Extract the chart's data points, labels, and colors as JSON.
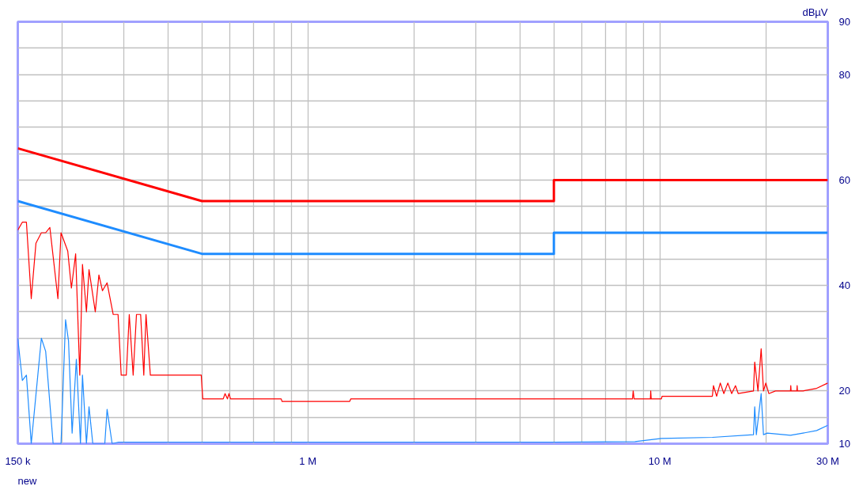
{
  "chart_data": {
    "type": "line",
    "ylabel": "dBµV",
    "annotations": [
      "new"
    ],
    "log": "x",
    "grid": true,
    "marker": "none",
    "line_style": "solid",
    "xlim": [
      150000,
      30000000
    ],
    "ylim": [
      10,
      90
    ],
    "xticks": [
      {
        "value": 150000,
        "label": "150 k"
      },
      {
        "value": 200000,
        "label": null
      },
      {
        "value": 300000,
        "label": null
      },
      {
        "value": 400000,
        "label": null
      },
      {
        "value": 500000,
        "label": null
      },
      {
        "value": 600000,
        "label": null
      },
      {
        "value": 700000,
        "label": null
      },
      {
        "value": 800000,
        "label": null
      },
      {
        "value": 900000,
        "label": null
      },
      {
        "value": 1000000,
        "label": "1 M"
      },
      {
        "value": 2000000,
        "label": null
      },
      {
        "value": 3000000,
        "label": null
      },
      {
        "value": 4000000,
        "label": null
      },
      {
        "value": 5000000,
        "label": null
      },
      {
        "value": 6000000,
        "label": null
      },
      {
        "value": 7000000,
        "label": null
      },
      {
        "value": 8000000,
        "label": null
      },
      {
        "value": 9000000,
        "label": null
      },
      {
        "value": 10000000,
        "label": "10 M"
      },
      {
        "value": 20000000,
        "label": null
      },
      {
        "value": 30000000,
        "label": "30 M"
      }
    ],
    "yticks": [
      10,
      {
        "value": 15,
        "label": null
      },
      20,
      {
        "value": 25,
        "label": null
      },
      {
        "value": 30,
        "label": null
      },
      {
        "value": 35,
        "label": null
      },
      40,
      {
        "value": 45,
        "label": null
      },
      {
        "value": 50,
        "label": null
      },
      {
        "value": 55,
        "label": null
      },
      60,
      {
        "value": 65,
        "label": null
      },
      {
        "value": 70,
        "label": null
      },
      {
        "value": 75,
        "label": null
      },
      80,
      {
        "value": 85,
        "label": null
      },
      90
    ],
    "series": [
      {
        "color": "#ff0000",
        "x": [
          150000,
          500000,
          5000000,
          5000000,
          30000000
        ],
        "values": [
          66,
          56,
          56,
          60,
          60
        ]
      },
      {
        "color": "#1e8cff",
        "x": [
          150000,
          500000,
          5000000,
          5000000,
          30000000
        ],
        "values": [
          56,
          46,
          46,
          50,
          50
        ]
      },
      {
        "color": "#ff0000",
        "x": [
          150000,
          154500,
          158700,
          163800,
          168900,
          175000,
          180000,
          185000,
          195000,
          199000,
          208000,
          213000,
          219000,
          225000,
          229000,
          235000,
          239000,
          249000,
          255000,
          261000,
          269000,
          280000,
          289000,
          295000,
          305000,
          311000,
          319000,
          326000,
          335000,
          342000,
          347000,
          357000,
          498000,
          503000,
          575000,
          582000,
          591000,
          597000,
          603000,
          840000,
          845000,
          1314000,
          1325000,
          5880000,
          8360000,
          8400000,
          8450000,
          9400000,
          9420000,
          9450000,
          10100000,
          10150000,
          14100000,
          14200000,
          14500000,
          14850000,
          15200000,
          15600000,
          16000000,
          16400000,
          16700000,
          18450000,
          18600000,
          19000000,
          19400000,
          19700000,
          20000000,
          20400000,
          21300000,
          23500000,
          23550000,
          23600000,
          24500000,
          24550000,
          24600000,
          25500000,
          27900000,
          30000000
        ],
        "values": [
          50.5,
          52,
          52,
          37.5,
          48,
          50,
          50,
          51,
          37.5,
          50,
          46.5,
          39.5,
          46,
          23,
          44,
          35,
          43,
          35,
          42,
          39,
          40.5,
          34.5,
          34.5,
          23,
          23,
          34.5,
          23,
          34.5,
          34.5,
          23,
          34.5,
          23,
          23,
          18.5,
          18.5,
          19.5,
          18.5,
          19.5,
          18.5,
          18.5,
          18,
          18,
          18.5,
          18.5,
          18.5,
          20,
          18.5,
          18.5,
          20,
          18.5,
          18.5,
          19,
          19,
          21,
          19,
          21.5,
          19.5,
          21.5,
          19.5,
          21,
          19.5,
          20,
          25.5,
          20,
          28,
          20,
          21.5,
          19.5,
          20,
          20,
          21,
          20,
          20,
          21,
          20,
          20,
          20.5,
          21.5
        ]
      },
      {
        "color": "#1e8cff",
        "x": [
          150000,
          154500,
          158700,
          163800,
          175000,
          180000,
          189000,
          199000,
          205000,
          209000,
          214000,
          220000,
          226000,
          229000,
          235000,
          239000,
          245000,
          265000,
          269000,
          278000,
          290000,
          1500000,
          5000000,
          8500000,
          10100000,
          14100000,
          18450000,
          18600000,
          18800000,
          19400000,
          19700000,
          20200000,
          23500000,
          25500000,
          27900000,
          30000000
        ],
        "values": [
          30,
          22,
          23,
          10,
          30,
          27.5,
          10,
          10,
          33.5,
          29.5,
          12,
          26,
          10,
          23,
          10,
          17,
          10,
          10,
          16.5,
          10,
          10.3,
          10.3,
          10.3,
          10.4,
          11,
          11.2,
          11.7,
          17,
          11.7,
          19.5,
          11.7,
          12,
          11.6,
          12,
          12.5,
          13.5
        ]
      }
    ]
  }
}
